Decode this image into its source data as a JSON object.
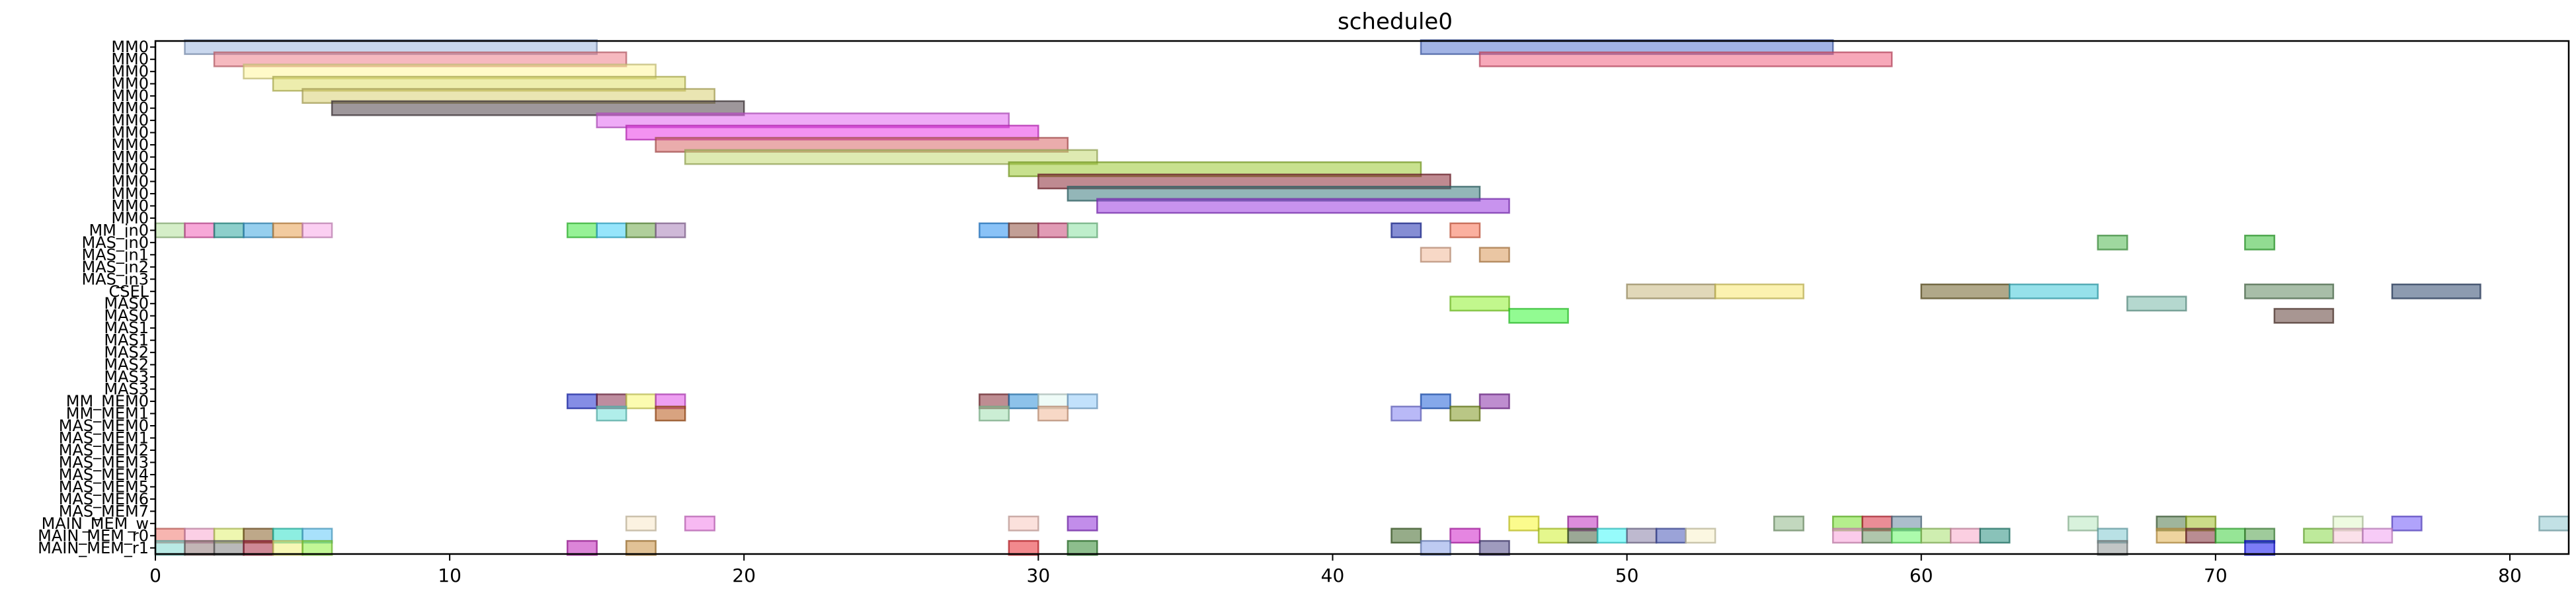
{
  "chart_data": {
    "type": "gantt",
    "title": "schedule0",
    "xlim": [
      0,
      82
    ],
    "xticks": [
      0,
      10,
      20,
      30,
      40,
      50,
      60,
      70,
      80
    ],
    "grid": false,
    "rows": [
      "MM0",
      "MM0",
      "MM0",
      "MM0",
      "MM0",
      "MM0",
      "MM0",
      "MM0",
      "MM0",
      "MM0",
      "MM0",
      "MM0",
      "MM0",
      "MM0",
      "MM0",
      "MM_in0",
      "MAS_in0",
      "MAS_in1",
      "MAS_in2",
      "MAS_in3",
      "CSEL",
      "MAS0",
      "MAS0",
      "MAS1",
      "MAS1",
      "MAS2",
      "MAS2",
      "MAS3",
      "MAS3",
      "MM_MEM0",
      "MM_MEM1",
      "MAS_MEM0",
      "MAS_MEM1",
      "MAS_MEM2",
      "MAS_MEM3",
      "MAS_MEM4",
      "MAS_MEM5",
      "MAS_MEM6",
      "MAS_MEM7",
      "MAIN_MEM_w",
      "MAIN_MEM_r0",
      "MAIN_MEM_r1"
    ],
    "tasks": [
      {
        "row": 0,
        "start": 1,
        "end": 15,
        "color": "#9fb8e0"
      },
      {
        "row": 0,
        "start": 43,
        "end": 57,
        "color": "#5577d0"
      },
      {
        "row": 1,
        "start": 2,
        "end": 16,
        "color": "#ee7f8a"
      },
      {
        "row": 1,
        "start": 45,
        "end": 59,
        "color": "#f0607f"
      },
      {
        "row": 2,
        "start": 3,
        "end": 17,
        "color": "#fff59a"
      },
      {
        "row": 3,
        "start": 4,
        "end": 18,
        "color": "#dede6a"
      },
      {
        "row": 4,
        "start": 5,
        "end": 19,
        "color": "#d8cf72"
      },
      {
        "row": 5,
        "start": 6,
        "end": 20,
        "color": "#4e4148"
      },
      {
        "row": 6,
        "start": 15,
        "end": 29,
        "color": "#e266f0"
      },
      {
        "row": 7,
        "start": 16,
        "end": 30,
        "color": "#ea38e6"
      },
      {
        "row": 8,
        "start": 17,
        "end": 31,
        "color": "#d86868"
      },
      {
        "row": 9,
        "start": 18,
        "end": 32,
        "color": "#c2d872"
      },
      {
        "row": 10,
        "start": 29,
        "end": 43,
        "color": "#9ac832"
      },
      {
        "row": 11,
        "start": 30,
        "end": 44,
        "color": "#8a2a36"
      },
      {
        "row": 12,
        "start": 31,
        "end": 45,
        "color": "#3a7a7e"
      },
      {
        "row": 13,
        "start": 32,
        "end": 46,
        "color": "#9a3ae0"
      },
      {
        "row": 15,
        "start": 0,
        "end": 1,
        "color": "#b2e09a"
      },
      {
        "row": 15,
        "start": 1,
        "end": 2,
        "color": "#f060b8"
      },
      {
        "row": 15,
        "start": 2,
        "end": 3,
        "color": "#30a8a0"
      },
      {
        "row": 15,
        "start": 3,
        "end": 4,
        "color": "#40a8e0"
      },
      {
        "row": 15,
        "start": 4,
        "end": 5,
        "color": "#e8a050"
      },
      {
        "row": 15,
        "start": 5,
        "end": 6,
        "color": "#f8a8e8"
      },
      {
        "row": 15,
        "start": 14,
        "end": 15,
        "color": "#40e840"
      },
      {
        "row": 15,
        "start": 15,
        "end": 16,
        "color": "#40d0f8"
      },
      {
        "row": 15,
        "start": 16,
        "end": 17,
        "color": "#70a848"
      },
      {
        "row": 15,
        "start": 17,
        "end": 18,
        "color": "#a880b8"
      },
      {
        "row": 15,
        "start": 28,
        "end": 29,
        "color": "#2890f0"
      },
      {
        "row": 15,
        "start": 29,
        "end": 30,
        "color": "#905040"
      },
      {
        "row": 15,
        "start": 30,
        "end": 31,
        "color": "#c84878"
      },
      {
        "row": 15,
        "start": 31,
        "end": 32,
        "color": "#88e0a0"
      },
      {
        "row": 15,
        "start": 42,
        "end": 43,
        "color": "#2030b0"
      },
      {
        "row": 15,
        "start": 44,
        "end": 45,
        "color": "#f87050"
      },
      {
        "row": 16,
        "start": 66,
        "end": 67,
        "color": "#50b850"
      },
      {
        "row": 16,
        "start": 71,
        "end": 72,
        "color": "#38c038"
      },
      {
        "row": 17,
        "start": 43,
        "end": 44,
        "color": "#f0b898"
      },
      {
        "row": 17,
        "start": 45,
        "end": 46,
        "color": "#d89858"
      },
      {
        "row": 20,
        "start": 50,
        "end": 53,
        "color": "#c8b880"
      },
      {
        "row": 20,
        "start": 53,
        "end": 56,
        "color": "#f8e870"
      },
      {
        "row": 20,
        "start": 60,
        "end": 63,
        "color": "#706028"
      },
      {
        "row": 20,
        "start": 63,
        "end": 66,
        "color": "#40c8d8"
      },
      {
        "row": 20,
        "start": 71,
        "end": 74,
        "color": "#608860"
      },
      {
        "row": 20,
        "start": 76,
        "end": 79,
        "color": "#304870"
      },
      {
        "row": 21,
        "start": 44,
        "end": 46,
        "color": "#90f030"
      },
      {
        "row": 21,
        "start": 67,
        "end": 69,
        "color": "#78b8a8"
      },
      {
        "row": 22,
        "start": 46,
        "end": 48,
        "color": "#38f838"
      },
      {
        "row": 22,
        "start": 72,
        "end": 74,
        "color": "#604038"
      },
      {
        "row": 29,
        "start": 14,
        "end": 15,
        "color": "#2030d0"
      },
      {
        "row": 29,
        "start": 15,
        "end": 16,
        "color": "#883050"
      },
      {
        "row": 29,
        "start": 16,
        "end": 17,
        "color": "#f8f870"
      },
      {
        "row": 29,
        "start": 17,
        "end": 18,
        "color": "#e050e8"
      },
      {
        "row": 29,
        "start": 28,
        "end": 29,
        "color": "#883038"
      },
      {
        "row": 29,
        "start": 29,
        "end": 30,
        "color": "#3090d8"
      },
      {
        "row": 29,
        "start": 30,
        "end": 31,
        "color": "#e0f8f0"
      },
      {
        "row": 29,
        "start": 31,
        "end": 32,
        "color": "#90c8f8"
      },
      {
        "row": 29,
        "start": 43,
        "end": 44,
        "color": "#2060d8"
      },
      {
        "row": 29,
        "start": 45,
        "end": 46,
        "color": "#8830a8"
      },
      {
        "row": 30,
        "start": 15,
        "end": 16,
        "color": "#70e0d8"
      },
      {
        "row": 30,
        "start": 17,
        "end": 18,
        "color": "#b85818"
      },
      {
        "row": 30,
        "start": 28,
        "end": 29,
        "color": "#a0e0b0"
      },
      {
        "row": 30,
        "start": 30,
        "end": 31,
        "color": "#f0b898"
      },
      {
        "row": 30,
        "start": 42,
        "end": 43,
        "color": "#8080f0"
      },
      {
        "row": 30,
        "start": 44,
        "end": 45,
        "color": "#809820"
      },
      {
        "row": 39,
        "start": 16,
        "end": 17,
        "color": "#f8e8c8"
      },
      {
        "row": 39,
        "start": 18,
        "end": 19,
        "color": "#f080e8"
      },
      {
        "row": 39,
        "start": 29,
        "end": 30,
        "color": "#f8c8c0"
      },
      {
        "row": 39,
        "start": 31,
        "end": 32,
        "color": "#9030d8"
      },
      {
        "row": 39,
        "start": 46,
        "end": 47,
        "color": "#f8f830"
      },
      {
        "row": 39,
        "start": 48,
        "end": 49,
        "color": "#c030c0"
      },
      {
        "row": 39,
        "start": 55,
        "end": 56,
        "color": "#90b888"
      },
      {
        "row": 39,
        "start": 57,
        "end": 58,
        "color": "#78e030"
      },
      {
        "row": 39,
        "start": 58,
        "end": 59,
        "color": "#d83040"
      },
      {
        "row": 39,
        "start": 59,
        "end": 60,
        "color": "#6888a0"
      },
      {
        "row": 39,
        "start": 65,
        "end": 66,
        "color": "#b8e8c0"
      },
      {
        "row": 39,
        "start": 68,
        "end": 69,
        "color": "#507848"
      },
      {
        "row": 39,
        "start": 69,
        "end": 70,
        "color": "#a0c028"
      },
      {
        "row": 39,
        "start": 74,
        "end": 75,
        "color": "#e0f8c8"
      },
      {
        "row": 39,
        "start": 76,
        "end": 77,
        "color": "#7058f8"
      },
      {
        "row": 39,
        "start": 81,
        "end": 82,
        "color": "#90c8d0"
      },
      {
        "row": 40,
        "start": 0,
        "end": 1,
        "color": "#f07870"
      },
      {
        "row": 40,
        "start": 1,
        "end": 2,
        "color": "#f8a8d0"
      },
      {
        "row": 40,
        "start": 2,
        "end": 3,
        "color": "#e0f070"
      },
      {
        "row": 40,
        "start": 3,
        "end": 4,
        "color": "#886028"
      },
      {
        "row": 40,
        "start": 4,
        "end": 5,
        "color": "#30e0c8"
      },
      {
        "row": 40,
        "start": 5,
        "end": 6,
        "color": "#60c8f8"
      },
      {
        "row": 40,
        "start": 42,
        "end": 43,
        "color": "#406828"
      },
      {
        "row": 40,
        "start": 44,
        "end": 45,
        "color": "#d020c8"
      },
      {
        "row": 40,
        "start": 47,
        "end": 48,
        "color": "#d0f030"
      },
      {
        "row": 40,
        "start": 48,
        "end": 49,
        "color": "#486040"
      },
      {
        "row": 40,
        "start": 49,
        "end": 50,
        "color": "#40f8f8"
      },
      {
        "row": 40,
        "start": 50,
        "end": 51,
        "color": "#8880a8"
      },
      {
        "row": 40,
        "start": 51,
        "end": 52,
        "color": "#4858b8"
      },
      {
        "row": 40,
        "start": 52,
        "end": 53,
        "color": "#f8f0c8"
      },
      {
        "row": 40,
        "start": 57,
        "end": 58,
        "color": "#f8a0d8"
      },
      {
        "row": 40,
        "start": 58,
        "end": 59,
        "color": "#709868"
      },
      {
        "row": 40,
        "start": 59,
        "end": 60,
        "color": "#68f868"
      },
      {
        "row": 40,
        "start": 60,
        "end": 61,
        "color": "#a8e070"
      },
      {
        "row": 40,
        "start": 61,
        "end": 62,
        "color": "#f8a8c8"
      },
      {
        "row": 40,
        "start": 62,
        "end": 63,
        "color": "#289080"
      },
      {
        "row": 40,
        "start": 66,
        "end": 67,
        "color": "#80c8d0"
      },
      {
        "row": 40,
        "start": 68,
        "end": 69,
        "color": "#e0b050"
      },
      {
        "row": 40,
        "start": 69,
        "end": 70,
        "color": "#803038"
      },
      {
        "row": 40,
        "start": 70,
        "end": 71,
        "color": "#40d040"
      },
      {
        "row": 40,
        "start": 71,
        "end": 72,
        "color": "#50a048"
      },
      {
        "row": 40,
        "start": 73,
        "end": 74,
        "color": "#88d848"
      },
      {
        "row": 40,
        "start": 74,
        "end": 75,
        "color": "#f8c8d8"
      },
      {
        "row": 40,
        "start": 75,
        "end": 76,
        "color": "#f0a0f0"
      },
      {
        "row": 41,
        "start": 0,
        "end": 1,
        "color": "#80d8d0"
      },
      {
        "row": 41,
        "start": 1,
        "end": 2,
        "color": "#907878"
      },
      {
        "row": 41,
        "start": 2,
        "end": 3,
        "color": "#808080"
      },
      {
        "row": 41,
        "start": 3,
        "end": 4,
        "color": "#a82840"
      },
      {
        "row": 41,
        "start": 4,
        "end": 5,
        "color": "#f0f078"
      },
      {
        "row": 41,
        "start": 5,
        "end": 6,
        "color": "#90f040"
      },
      {
        "row": 41,
        "start": 14,
        "end": 15,
        "color": "#c020b8"
      },
      {
        "row": 41,
        "start": 16,
        "end": 17,
        "color": "#c89040"
      },
      {
        "row": 41,
        "start": 29,
        "end": 30,
        "color": "#e82830"
      },
      {
        "row": 41,
        "start": 31,
        "end": 32,
        "color": "#308830"
      },
      {
        "row": 41,
        "start": 43,
        "end": 44,
        "color": "#88a0e8"
      },
      {
        "row": 41,
        "start": 45,
        "end": 46,
        "color": "#504888"
      },
      {
        "row": 41,
        "start": 66,
        "end": 67,
        "color": "#909898"
      },
      {
        "row": 41,
        "start": 71,
        "end": 72,
        "color": "#1010f0"
      }
    ]
  }
}
